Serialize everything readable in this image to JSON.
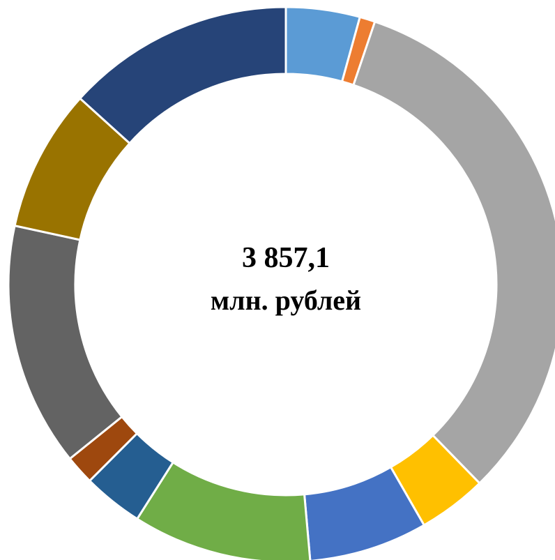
{
  "chart_data": {
    "type": "donut",
    "center_text": "3 857,1",
    "center_subtext": "млн. рублей",
    "values": [
      4.3,
      0.9,
      32.5,
      4.0,
      6.9,
      10.4,
      3.5,
      1.7,
      14.2,
      8.3,
      13.3
    ],
    "colors": [
      "#5b9bd5",
      "#ed7d31",
      "#a5a5a5",
      "#ffc000",
      "#4472c4",
      "#70ad47",
      "#255e91",
      "#9e480e",
      "#636363",
      "#997300",
      "#264478"
    ]
  }
}
